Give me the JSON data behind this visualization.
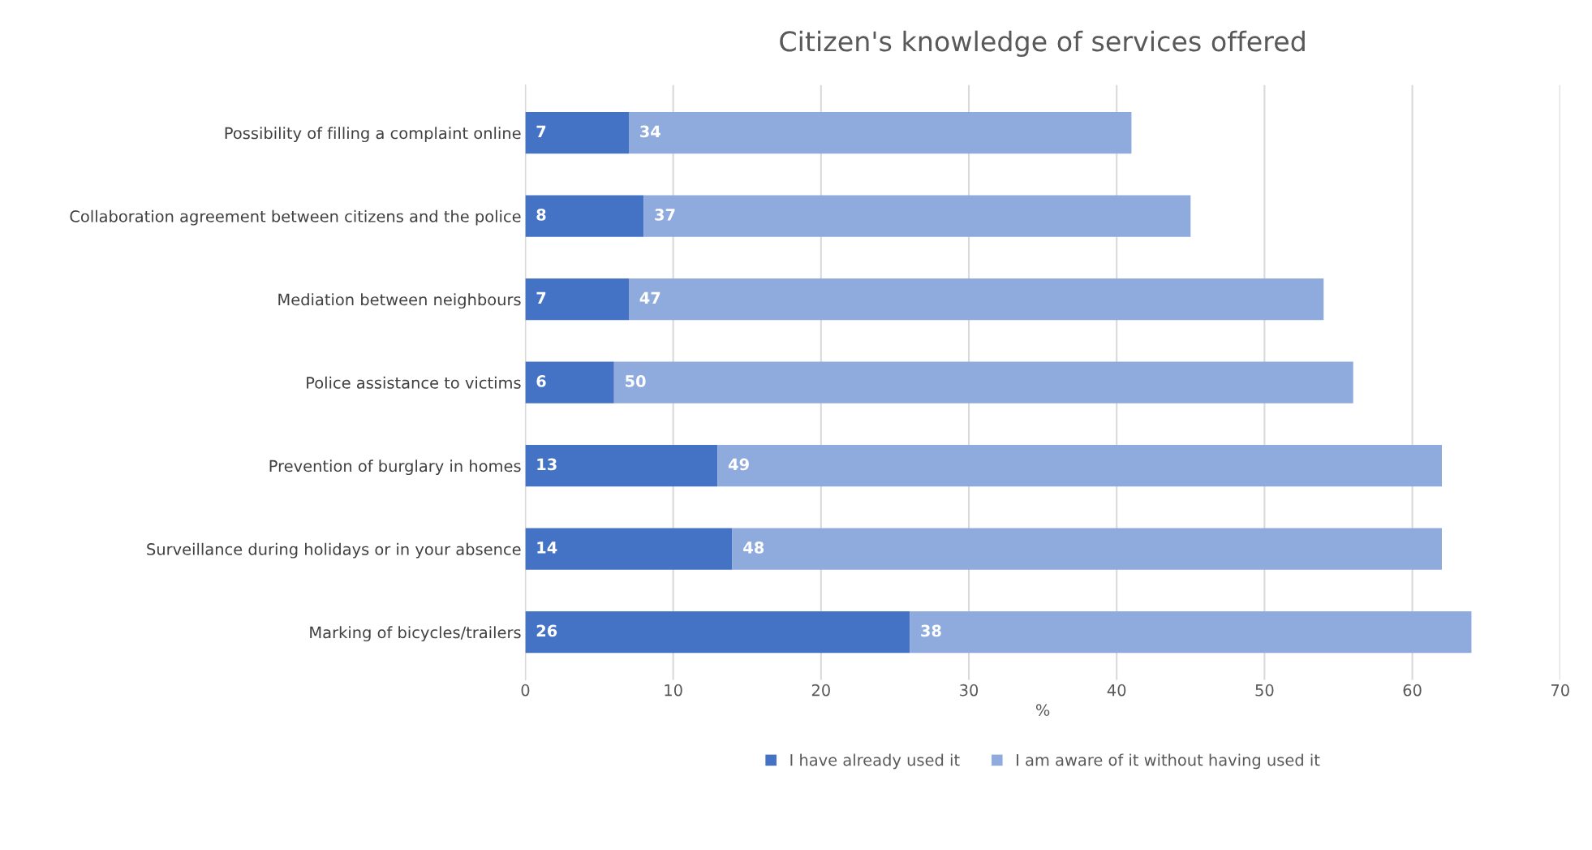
{
  "chart_data": {
    "type": "bar",
    "title": "Citizen's knowledge of services offered",
    "orientation": "horizontal",
    "stacked": true,
    "categories": [
      "Possibility of filling a complaint online",
      "Collaboration agreement between citizens and the police",
      "Mediation between neighbours",
      "Police assistance to victims",
      "Prevention of burglary in homes",
      "Surveillance during holidays or in your absence",
      "Marking of bicycles/trailers"
    ],
    "series": [
      {
        "name": "I have already used it",
        "color": "#4472c4",
        "values": [
          7,
          8,
          7,
          6,
          13,
          14,
          26
        ]
      },
      {
        "name": "I am aware of it without having used it",
        "color": "#8faadc",
        "values": [
          34,
          37,
          47,
          50,
          49,
          48,
          38
        ]
      }
    ],
    "xlabel": "%",
    "xlim": [
      0,
      70
    ],
    "xticks": [
      0,
      10,
      20,
      30,
      40,
      50,
      60,
      70
    ],
    "grid": "x",
    "legend": "bottom",
    "data_labels": true
  }
}
